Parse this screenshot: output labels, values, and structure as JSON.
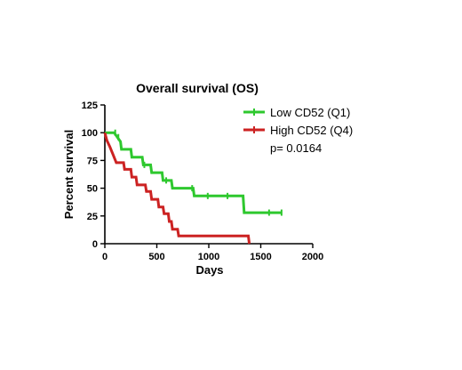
{
  "chart_data": {
    "type": "line",
    "step": true,
    "title": "Overall survival (OS)",
    "xlabel": "Days",
    "ylabel": "Percent survival",
    "xlim": [
      0,
      2000
    ],
    "ylim": [
      0,
      125
    ],
    "xticks": [
      0,
      500,
      1000,
      1500,
      2000
    ],
    "yticks": [
      0,
      25,
      50,
      75,
      100,
      125
    ],
    "grid": false,
    "legend_position": "top-right",
    "annotation": "p= 0.0164",
    "series": [
      {
        "name": "Low CD52 (Q1)",
        "color": "#2ec82e",
        "points": [
          [
            0,
            100
          ],
          [
            90,
            100
          ],
          [
            120,
            96
          ],
          [
            150,
            92
          ],
          [
            160,
            85
          ],
          [
            250,
            85
          ],
          [
            260,
            78
          ],
          [
            360,
            78
          ],
          [
            370,
            71
          ],
          [
            440,
            71
          ],
          [
            450,
            64
          ],
          [
            550,
            64
          ],
          [
            560,
            57
          ],
          [
            640,
            57
          ],
          [
            650,
            50
          ],
          [
            850,
            50
          ],
          [
            860,
            43
          ],
          [
            1330,
            43
          ],
          [
            1340,
            28
          ],
          [
            1700,
            28
          ]
        ],
        "censored": [
          [
            100,
            100
          ],
          [
            130,
            96
          ],
          [
            380,
            71
          ],
          [
            590,
            57
          ],
          [
            840,
            50
          ],
          [
            990,
            43
          ],
          [
            1180,
            43
          ],
          [
            1580,
            28
          ],
          [
            1700,
            28
          ]
        ]
      },
      {
        "name": "High CD52 (Q4)",
        "color": "#cc2222",
        "points": [
          [
            0,
            100
          ],
          [
            20,
            93
          ],
          [
            50,
            87
          ],
          [
            80,
            80
          ],
          [
            110,
            73
          ],
          [
            180,
            73
          ],
          [
            190,
            67
          ],
          [
            250,
            67
          ],
          [
            260,
            60
          ],
          [
            300,
            60
          ],
          [
            310,
            53
          ],
          [
            390,
            53
          ],
          [
            400,
            47
          ],
          [
            440,
            47
          ],
          [
            450,
            40
          ],
          [
            510,
            40
          ],
          [
            520,
            33
          ],
          [
            560,
            33
          ],
          [
            570,
            27
          ],
          [
            610,
            27
          ],
          [
            620,
            20
          ],
          [
            640,
            20
          ],
          [
            650,
            13
          ],
          [
            700,
            13
          ],
          [
            710,
            7
          ],
          [
            1380,
            7
          ],
          [
            1390,
            0
          ]
        ],
        "censored": []
      }
    ]
  }
}
